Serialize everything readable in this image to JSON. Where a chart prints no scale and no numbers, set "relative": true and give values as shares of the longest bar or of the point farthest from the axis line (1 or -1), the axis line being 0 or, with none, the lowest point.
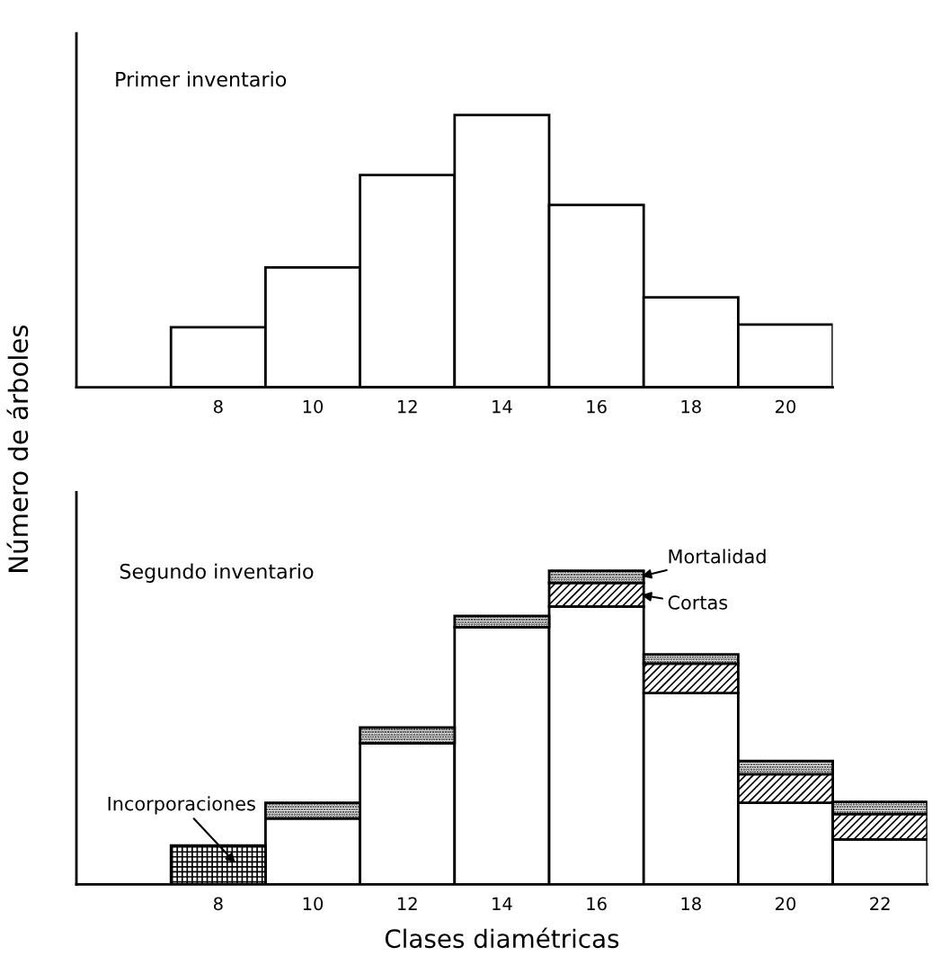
{
  "chart_data": [
    {
      "type": "bar",
      "relative": true,
      "title": "Primer inventario",
      "ylabel": "Número de árboles",
      "categories": [
        null,
        "8",
        "10",
        "12",
        "14",
        "16",
        "18",
        "20"
      ],
      "series": [
        {
          "color": "#ffffff",
          "values": [
            null,
            0.22,
            0.44,
            0.78,
            1,
            0.67,
            0.33,
            0.23
          ]
        }
      ]
    },
    {
      "type": "bar",
      "relative": true,
      "stacked": true,
      "title": "Segundo inventario",
      "xlabel": "Clases diamétricas",
      "categories": [
        null,
        "8",
        "10",
        "12",
        "14",
        "16",
        "18",
        "20",
        "22"
      ],
      "series": [
        {
          "color": "#ffffff",
          "values": [
            null,
            null,
            0.21,
            0.45,
            0.82,
            0.886,
            0.61,
            0.26,
            0.143
          ]
        },
        {
          "name": "Incorporaciones",
          "color": "#000000",
          "values": [
            null,
            0.124,
            null,
            null,
            null,
            null,
            null,
            null,
            null
          ]
        },
        {
          "name": "Cortas",
          "color": "#000000",
          "values": [
            null,
            null,
            null,
            null,
            null,
            0.075,
            0.094,
            0.091,
            0.081
          ]
        },
        {
          "name": "Mortalidad",
          "color": "#000000",
          "values": [
            null,
            null,
            0.05,
            0.05,
            0.036,
            0.039,
            0.029,
            0.042,
            0.039
          ]
        }
      ]
    }
  ]
}
